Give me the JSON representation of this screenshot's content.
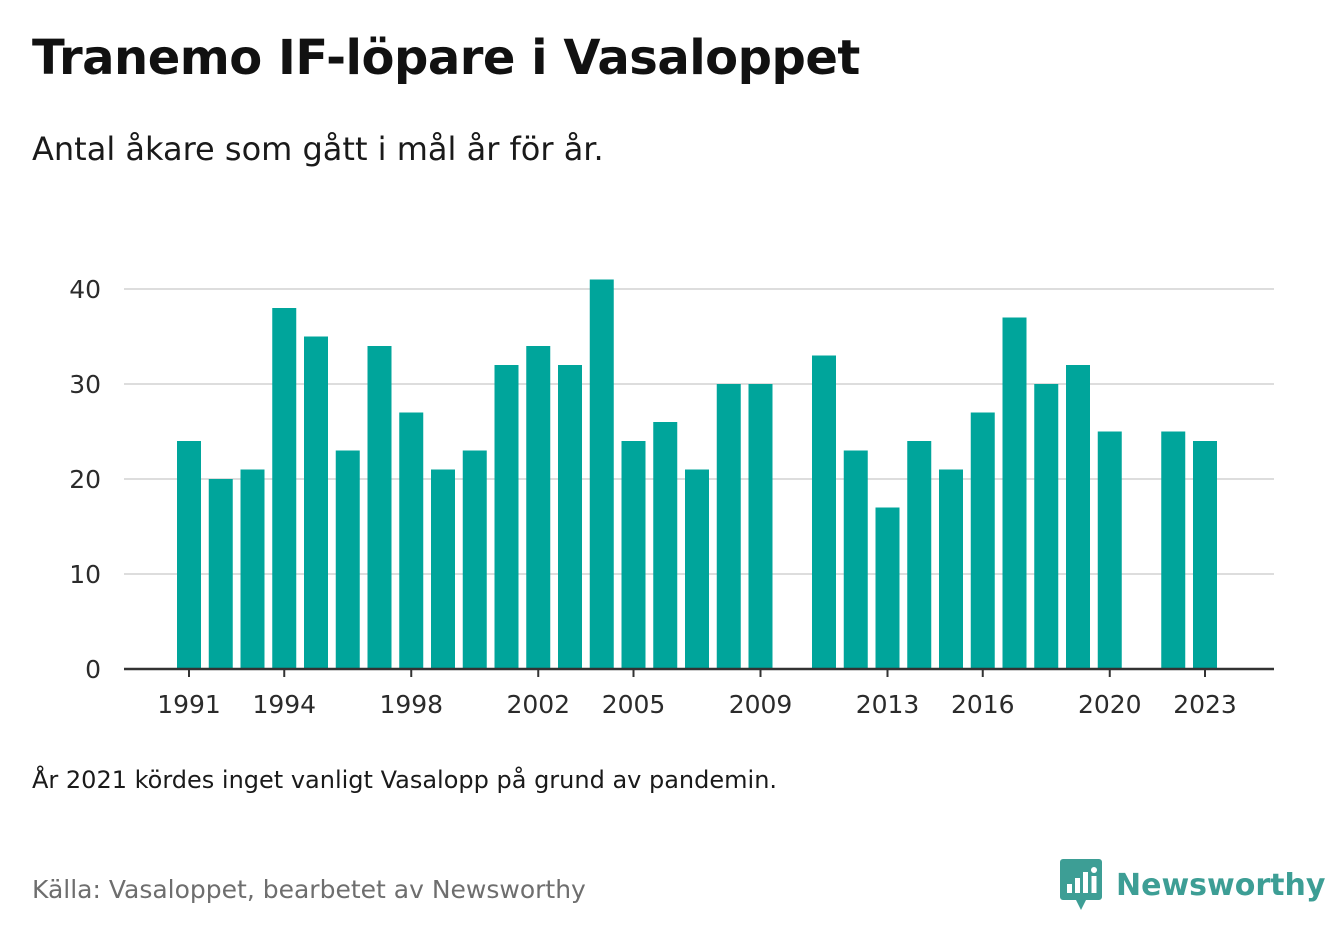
{
  "header": {
    "title": "Tranemo IF-löpare i Vasaloppet",
    "subtitle": "Antal åkare som gått i mål år för år."
  },
  "footer": {
    "note": "År 2021 kördes inget vanligt Vasalopp på grund av pandemin.",
    "source": "Källa: Vasaloppet, bearbetet av Newsworthy",
    "brand": "Newsworthy",
    "brand_icon": "newsworthy-logo-icon"
  },
  "colors": {
    "bar": "#00a59b",
    "grid": "#dddddd",
    "axis": "#333333",
    "brand": "#3d9e95"
  },
  "chart_data": {
    "type": "bar",
    "title": "Tranemo IF-löpare i Vasaloppet",
    "subtitle": "Antal åkare som gått i mål år för år.",
    "xlabel": "",
    "ylabel": "",
    "categories": [
      1991,
      1992,
      1993,
      1994,
      1995,
      1996,
      1997,
      1998,
      1999,
      2000,
      2001,
      2002,
      2003,
      2004,
      2005,
      2006,
      2007,
      2008,
      2009,
      2010,
      2011,
      2012,
      2013,
      2014,
      2015,
      2016,
      2017,
      2018,
      2019,
      2020,
      2021,
      2022,
      2023
    ],
    "values": [
      24,
      20,
      21,
      38,
      35,
      23,
      34,
      27,
      21,
      23,
      32,
      34,
      32,
      41,
      24,
      26,
      21,
      30,
      30,
      null,
      33,
      23,
      17,
      24,
      21,
      27,
      37,
      30,
      32,
      25,
      null,
      25,
      24
    ],
    "x_tick_labels": [
      "1991",
      "1994",
      "1998",
      "2002",
      "2005",
      "2009",
      "2013",
      "2016",
      "2020",
      "2023"
    ],
    "y_ticks": [
      0,
      10,
      20,
      30,
      40
    ],
    "ylim": [
      0,
      40
    ],
    "grid": true,
    "legend": "none"
  }
}
